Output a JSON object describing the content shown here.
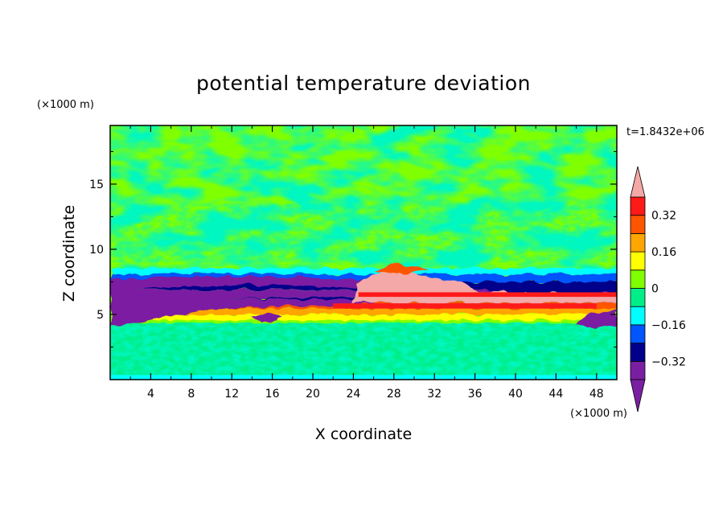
{
  "chart_data": {
    "type": "heatmap",
    "title": "potential temperature deviation",
    "xlabel": "X coordinate",
    "ylabel": "Z coordinate",
    "x_unit": "(×1000 m)",
    "y_unit": "(×1000 m)",
    "time_label": "t=1.8432e+06",
    "xlim": [
      0,
      50
    ],
    "ylim": [
      0,
      19.5
    ],
    "x_ticks": [
      4,
      8,
      12,
      16,
      20,
      24,
      28,
      32,
      36,
      40,
      44,
      48
    ],
    "x_tick_labels": [
      "4",
      "8",
      "12",
      "16",
      "20",
      "24",
      "28",
      "32",
      "36",
      "40",
      "44",
      "48"
    ],
    "y_ticks": [
      5,
      10,
      15
    ],
    "y_tick_labels": [
      "5",
      "10",
      "15"
    ],
    "colorbar": {
      "levels": [
        -0.4,
        -0.32,
        -0.24,
        -0.16,
        -0.08,
        0,
        0.08,
        0.16,
        0.24,
        0.32,
        0.4
      ],
      "tick_values": [
        0.32,
        0.16,
        0,
        -0.16,
        -0.32
      ],
      "tick_labels": [
        "0.32",
        "0.16",
        "0",
        "−0.16",
        "−0.32"
      ],
      "over_color": "#f4a8a8",
      "under_color": "#7b1fa2",
      "colors": [
        "#7b1fa2",
        "#00008b",
        "#0055ff",
        "#00ffff",
        "#00ee88",
        "#80ff00",
        "#ffff00",
        "#ffa500",
        "#ff5500",
        "#ff1a1a"
      ]
    }
  }
}
